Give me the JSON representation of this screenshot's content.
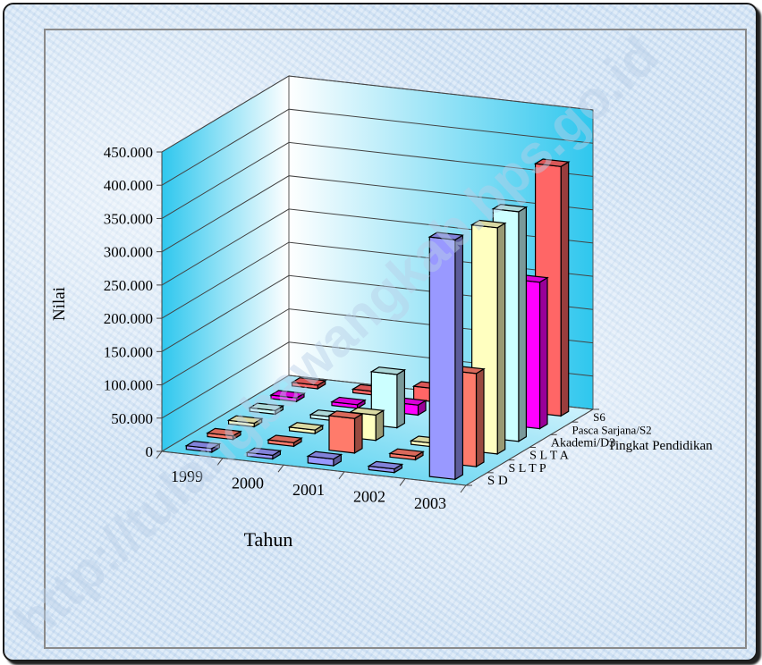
{
  "chart_data": {
    "type": "bar",
    "subtype": "3d-bar",
    "x_label": "Tahun",
    "y_label": "Nilai",
    "z_label": "Tingkat Pendidikan",
    "categories": [
      "1999",
      "2000",
      "2001",
      "2002",
      "2003"
    ],
    "y_ticks": [
      "0",
      "50.000",
      "100.000",
      "150.000",
      "200.000",
      "250.000",
      "300.000",
      "350.000",
      "400.000",
      "450.000"
    ],
    "ylim": [
      0,
      450000
    ],
    "grid": true,
    "series": [
      {
        "name": "S D",
        "color": "#9999ff",
        "values": [
          0,
          0,
          10000,
          0,
          360000
        ]
      },
      {
        "name": "S L T P",
        "color": "#ff7b6b",
        "values": [
          0,
          0,
          52000,
          0,
          140000
        ]
      },
      {
        "name": "S L T A",
        "color": "#ffffc0",
        "values": [
          0,
          0,
          38000,
          0,
          340000
        ]
      },
      {
        "name": "Akademi/D3",
        "color": "#ccffff",
        "values": [
          0,
          0,
          80000,
          0,
          345000
        ]
      },
      {
        "name": "Pasca Sarjana/S2",
        "color": "#ff00ff",
        "values": [
          0,
          0,
          15000,
          0,
          220000
        ]
      },
      {
        "name": "S6",
        "color": "#ff6666",
        "values": [
          0,
          0,
          20000,
          0,
          375000
        ]
      }
    ]
  },
  "watermark_text": "http://tulangbawangkab.bps.go.id"
}
